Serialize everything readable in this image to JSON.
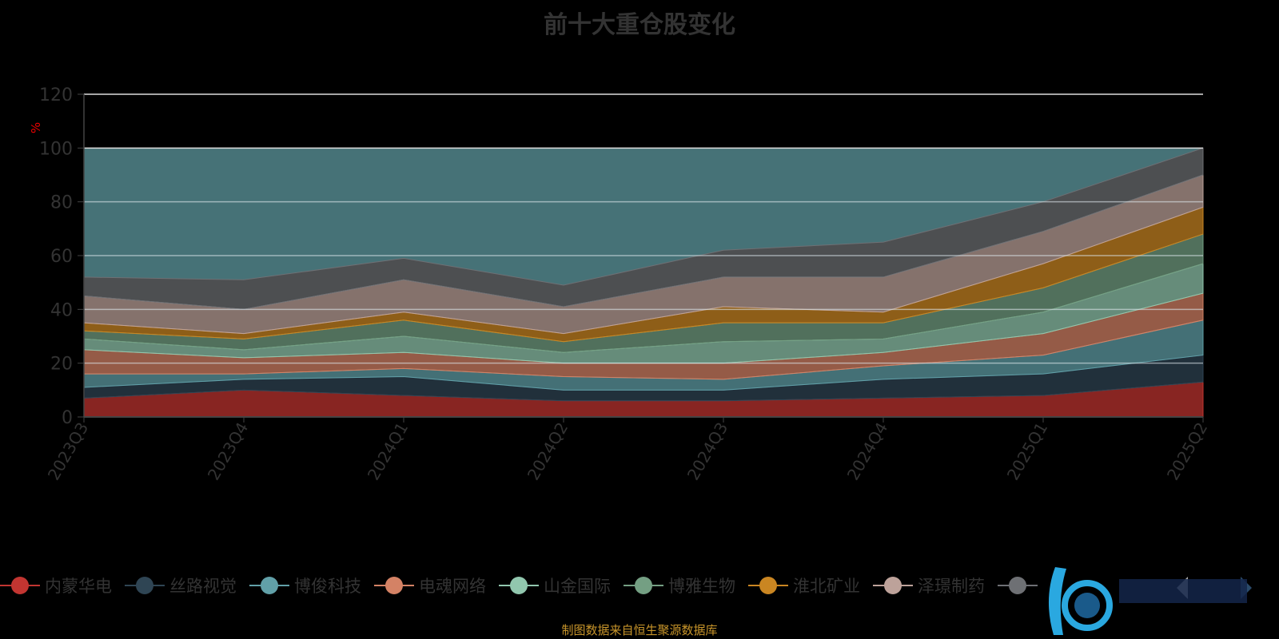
{
  "title": "前十大重仓股变化",
  "source": "制图数据来自恒生聚源数据库",
  "chart_data": {
    "type": "area",
    "stacked": true,
    "title": "前十大重仓股变化",
    "ylabel": "%",
    "xlabel": "",
    "ylim": [
      0,
      120
    ],
    "yticks": [
      "0",
      "20",
      "40",
      "60",
      "80",
      "100",
      "120"
    ],
    "categories": [
      "2023Q3",
      "2023Q4",
      "2024Q1",
      "2024Q2",
      "2024Q3",
      "2024Q4",
      "2025Q1",
      "2025Q2"
    ],
    "grid": true,
    "legend_position": "bottom",
    "remainder_color": "#467277",
    "series": [
      {
        "name": "内蒙华电",
        "color": "#c23531",
        "values": [
          7,
          10,
          8,
          6,
          6,
          7,
          8,
          13
        ]
      },
      {
        "name": "丝路视觉",
        "color": "#2f4554",
        "values": [
          4,
          4,
          7,
          4,
          4,
          7,
          8,
          10
        ]
      },
      {
        "name": "博俊科技",
        "color": "#61a0a8",
        "values": [
          5,
          2,
          3,
          5,
          4,
          5,
          7,
          13
        ]
      },
      {
        "name": "电魂网络",
        "color": "#d48265",
        "values": [
          9,
          6,
          6,
          5,
          6,
          5,
          8,
          10
        ]
      },
      {
        "name": "山金国际",
        "color": "#91c7ae",
        "values": [
          4,
          3,
          6,
          4,
          8,
          5,
          8,
          11
        ]
      },
      {
        "name": "博雅生物",
        "color": "#749f83",
        "values": [
          3,
          4,
          6,
          4,
          7,
          6,
          9,
          11
        ]
      },
      {
        "name": "淮北矿业",
        "color": "#ca8622",
        "values": [
          3,
          2,
          3,
          3,
          6,
          4,
          9,
          10
        ]
      },
      {
        "name": "泽璟制药",
        "color": "#bda29a",
        "values": [
          10,
          9,
          12,
          10,
          11,
          13,
          12,
          12
        ]
      },
      {
        "name": "",
        "color": "#6e7074",
        "values": [
          7,
          11,
          8,
          8,
          10,
          13,
          11,
          10
        ]
      }
    ]
  }
}
